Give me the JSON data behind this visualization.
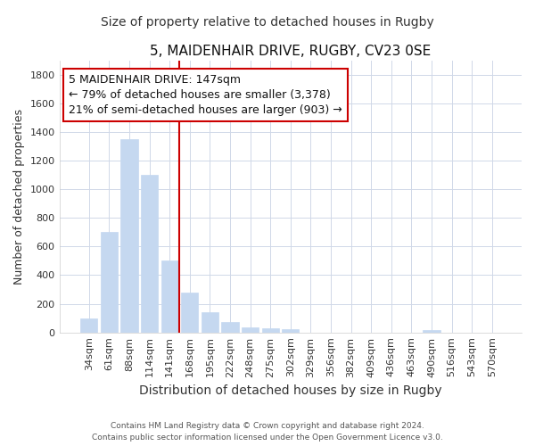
{
  "title": "5, MAIDENHAIR DRIVE, RUGBY, CV23 0SE",
  "subtitle": "Size of property relative to detached houses in Rugby",
  "xlabel": "Distribution of detached houses by size in Rugby",
  "ylabel": "Number of detached properties",
  "categories": [
    "34sqm",
    "61sqm",
    "88sqm",
    "114sqm",
    "141sqm",
    "168sqm",
    "195sqm",
    "222sqm",
    "248sqm",
    "275sqm",
    "302sqm",
    "329sqm",
    "356sqm",
    "382sqm",
    "409sqm",
    "436sqm",
    "463sqm",
    "490sqm",
    "516sqm",
    "543sqm",
    "570sqm"
  ],
  "values": [
    100,
    700,
    1350,
    1100,
    500,
    280,
    140,
    70,
    35,
    30,
    20,
    0,
    0,
    0,
    0,
    0,
    0,
    15,
    0,
    0,
    0
  ],
  "bar_color": "#c5d8f0",
  "bar_edge_color": "#c5d8f0",
  "bar_width": 0.85,
  "ylim": [
    0,
    1900
  ],
  "yticks": [
    0,
    200,
    400,
    600,
    800,
    1000,
    1200,
    1400,
    1600,
    1800
  ],
  "property_line_color": "#cc0000",
  "annotation_title": "5 MAIDENHAIR DRIVE: 147sqm",
  "annotation_line1": "← 79% of detached houses are smaller (3,378)",
  "annotation_line2": "21% of semi-detached houses are larger (903) →",
  "annotation_box_color": "#cc0000",
  "background_color": "#ffffff",
  "plot_bg_color": "#ffffff",
  "grid_color": "#d0d8e8",
  "footer_line1": "Contains HM Land Registry data © Crown copyright and database right 2024.",
  "footer_line2": "Contains public sector information licensed under the Open Government Licence v3.0.",
  "title_fontsize": 11,
  "subtitle_fontsize": 10,
  "xlabel_fontsize": 10,
  "ylabel_fontsize": 9,
  "tick_fontsize": 8,
  "annotation_fontsize": 9
}
